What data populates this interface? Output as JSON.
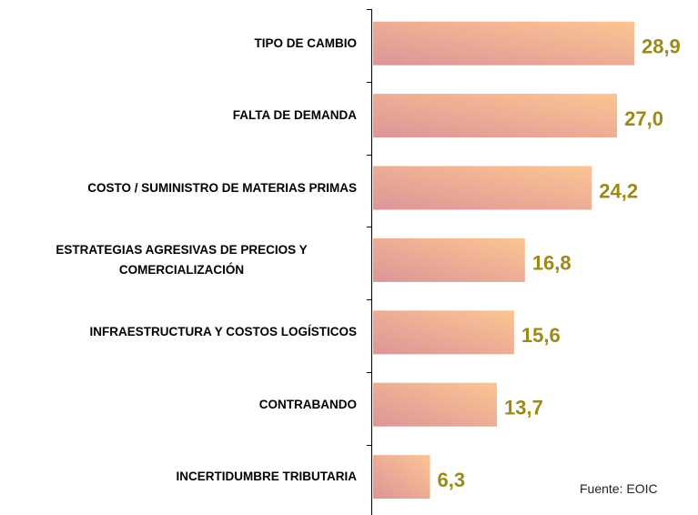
{
  "chart_data": {
    "type": "bar",
    "orientation": "horizontal",
    "categories": [
      "TIPO DE CAMBIO",
      "FALTA DE DEMANDA",
      "COSTO / SUMINISTRO DE MATERIAS PRIMAS",
      "ESTRATEGIAS AGRESIVAS DE PRECIOS Y COMERCIALIZACIÓN",
      "INFRAESTRUCTURA Y COSTOS LOGÍSTICOS",
      "CONTRABANDO",
      "INCERTIDUMBRE TRIBUTARIA"
    ],
    "values": [
      28.9,
      27.0,
      24.2,
      16.8,
      15.6,
      13.7,
      6.3
    ],
    "value_labels": [
      "28,9",
      "27,0",
      "24,2",
      "16,8",
      "15,6",
      "13,7",
      "6,3"
    ],
    "source": "Fuente: EOIC"
  }
}
